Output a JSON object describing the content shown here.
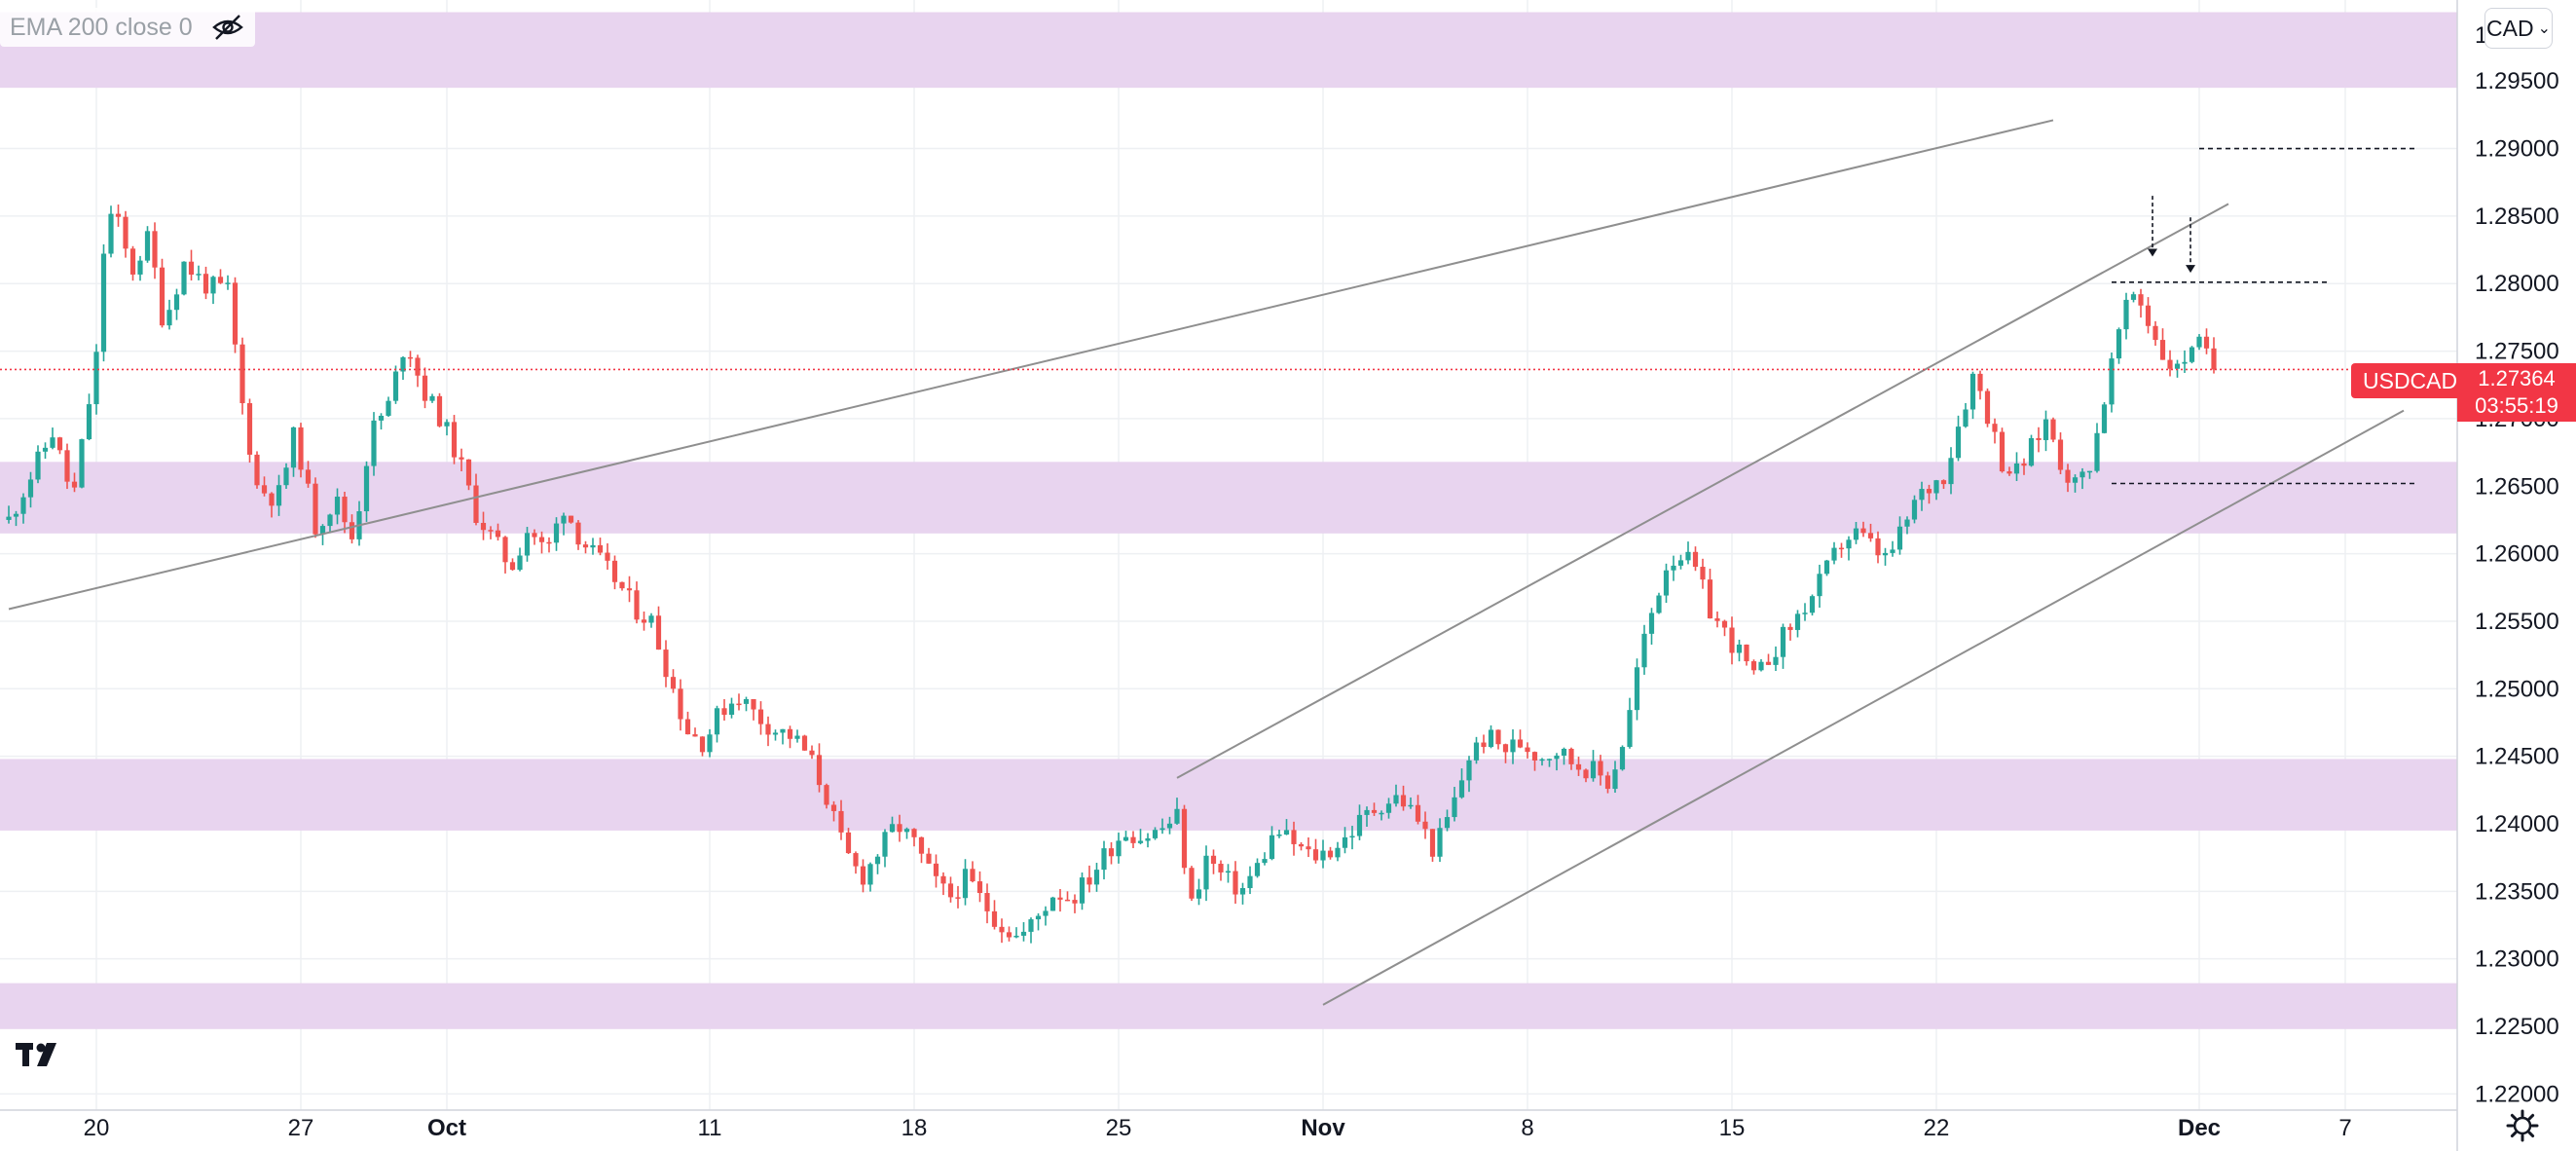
{
  "indicator": {
    "label": "EMA 200 close 0",
    "visibility_icon": "eye-crossed-icon"
  },
  "currency_button": {
    "label": "CAD",
    "icon": "chevron-down-icon"
  },
  "symbol_tag": {
    "label": "USDCAD"
  },
  "price_box": {
    "price": "1.27364",
    "countdown": "03:55:19"
  },
  "logo": {
    "icon": "tradingview-logo-icon"
  },
  "settings": {
    "icon": "gear-icon"
  },
  "colors": {
    "up": "#26a69a",
    "down": "#ef5350",
    "zone": "#e8d4ef",
    "grid": "#eef0f3",
    "axis_text": "#131722",
    "trendline": "#8f8f8f",
    "dashed": "#131722",
    "price_line": "#f23645"
  },
  "chart_data": {
    "type": "candlestick",
    "symbol": "USDCAD",
    "y_ticks": [
      "1.22000",
      "1.22500",
      "1.23000",
      "1.23500",
      "1.24000",
      "1.24500",
      "1.25000",
      "1.25500",
      "1.26000",
      "1.26500",
      "1.27000",
      "1.27500",
      "1.28000",
      "1.28500",
      "1.29000",
      "1.29500"
    ],
    "y_top_partial_label": "1",
    "ylim": [
      1.2188,
      1.301
    ],
    "x_ticks": [
      {
        "label": "20",
        "bold": false
      },
      {
        "label": "27",
        "bold": false
      },
      {
        "label": "Oct",
        "bold": true
      },
      {
        "label": "11",
        "bold": false
      },
      {
        "label": "18",
        "bold": false
      },
      {
        "label": "25",
        "bold": false
      },
      {
        "label": "Nov",
        "bold": true
      },
      {
        "label": "8",
        "bold": false
      },
      {
        "label": "15",
        "bold": false
      },
      {
        "label": "22",
        "bold": false
      },
      {
        "label": "Dec",
        "bold": true
      },
      {
        "label": "7",
        "bold": false
      }
    ],
    "x_tick_days": [
      0,
      7,
      12,
      21,
      28,
      35,
      42,
      49,
      56,
      63,
      72,
      77
    ],
    "current_price": 1.27364,
    "path": [
      [
        -3,
        1.2625
      ],
      [
        -1.5,
        1.269
      ],
      [
        -0.8,
        1.264
      ],
      [
        0,
        1.2745
      ],
      [
        0.3,
        1.284
      ],
      [
        0.6,
        1.2855
      ],
      [
        1.2,
        1.2808
      ],
      [
        1.8,
        1.2835
      ],
      [
        2.3,
        1.277
      ],
      [
        3,
        1.2815
      ],
      [
        3.8,
        1.2798
      ],
      [
        4.5,
        1.2795
      ],
      [
        5,
        1.271
      ],
      [
        5.5,
        1.265
      ],
      [
        6.2,
        1.264
      ],
      [
        6.8,
        1.269
      ],
      [
        7.5,
        1.262
      ],
      [
        8.2,
        1.264
      ],
      [
        8.8,
        1.261
      ],
      [
        9.4,
        1.269
      ],
      [
        10,
        1.271
      ],
      [
        10.6,
        1.276
      ],
      [
        11.2,
        1.272
      ],
      [
        11.8,
        1.27
      ],
      [
        12.4,
        1.267
      ],
      [
        13,
        1.263
      ],
      [
        13.6,
        1.261
      ],
      [
        14.2,
        1.259
      ],
      [
        14.8,
        1.262
      ],
      [
        15.4,
        1.26
      ],
      [
        16,
        1.2635
      ],
      [
        16.6,
        1.261
      ],
      [
        17.2,
        1.2595
      ],
      [
        17.8,
        1.258
      ],
      [
        18.4,
        1.256
      ],
      [
        19,
        1.255
      ],
      [
        19.6,
        1.251
      ],
      [
        20.2,
        1.247
      ],
      [
        20.8,
        1.246
      ],
      [
        21.4,
        1.2485
      ],
      [
        22,
        1.2495
      ],
      [
        22.6,
        1.248
      ],
      [
        23.2,
        1.247
      ],
      [
        23.8,
        1.2465
      ],
      [
        24.4,
        1.245
      ],
      [
        25,
        1.242
      ],
      [
        25.6,
        1.238
      ],
      [
        26.2,
        1.236
      ],
      [
        26.8,
        1.238
      ],
      [
        27.4,
        1.24
      ],
      [
        28,
        1.2385
      ],
      [
        28.6,
        1.236
      ],
      [
        29.2,
        1.2345
      ],
      [
        29.8,
        1.236
      ],
      [
        30.4,
        1.234
      ],
      [
        31,
        1.2325
      ],
      [
        31.6,
        1.2315
      ],
      [
        32.2,
        1.233
      ],
      [
        32.8,
        1.235
      ],
      [
        33.4,
        1.2345
      ],
      [
        34,
        1.236
      ],
      [
        34.6,
        1.238
      ],
      [
        35.2,
        1.2395
      ],
      [
        35.8,
        1.239
      ],
      [
        36.4,
        1.2395
      ],
      [
        37,
        1.2405
      ],
      [
        37.5,
        1.234
      ],
      [
        38,
        1.2375
      ],
      [
        38.6,
        1.236
      ],
      [
        39.2,
        1.235
      ],
      [
        39.8,
        1.237
      ],
      [
        40.4,
        1.2395
      ],
      [
        41,
        1.2385
      ],
      [
        41.6,
        1.2375
      ],
      [
        42.2,
        1.238
      ],
      [
        42.8,
        1.239
      ],
      [
        43.4,
        1.2405
      ],
      [
        44,
        1.2415
      ],
      [
        44.6,
        1.242
      ],
      [
        45.2,
        1.2405
      ],
      [
        45.8,
        1.238
      ],
      [
        46.4,
        1.241
      ],
      [
        47,
        1.245
      ],
      [
        47.6,
        1.2465
      ],
      [
        48.2,
        1.2455
      ],
      [
        48.8,
        1.246
      ],
      [
        49.4,
        1.245
      ],
      [
        50,
        1.2455
      ],
      [
        50.6,
        1.2445
      ],
      [
        51.2,
        1.244
      ],
      [
        51.8,
        1.243
      ],
      [
        52.4,
        1.247
      ],
      [
        52.8,
        1.252
      ],
      [
        53.3,
        1.256
      ],
      [
        53.8,
        1.2595
      ],
      [
        54.3,
        1.26
      ],
      [
        54.8,
        1.2585
      ],
      [
        55.3,
        1.2555
      ],
      [
        55.8,
        1.254
      ],
      [
        56.3,
        1.2525
      ],
      [
        56.8,
        1.2505
      ],
      [
        57.3,
        1.2525
      ],
      [
        57.8,
        1.254
      ],
      [
        58.3,
        1.2555
      ],
      [
        58.8,
        1.257
      ],
      [
        59.3,
        1.259
      ],
      [
        59.8,
        1.261
      ],
      [
        60.3,
        1.2615
      ],
      [
        60.8,
        1.2605
      ],
      [
        61.3,
        1.2595
      ],
      [
        61.8,
        1.2615
      ],
      [
        62.3,
        1.264
      ],
      [
        62.8,
        1.265
      ],
      [
        63.3,
        1.266
      ],
      [
        63.8,
        1.27
      ],
      [
        64.3,
        1.2735
      ],
      [
        64.8,
        1.27
      ],
      [
        65.3,
        1.2665
      ],
      [
        65.8,
        1.266
      ],
      [
        66.3,
        1.268
      ],
      [
        66.8,
        1.27
      ],
      [
        67.3,
        1.2665
      ],
      [
        67.8,
        1.265
      ],
      [
        68.3,
        1.267
      ],
      [
        68.8,
        1.272
      ],
      [
        69.3,
        1.277
      ],
      [
        69.8,
        1.2795
      ],
      [
        70.3,
        1.277
      ],
      [
        70.8,
        1.2745
      ],
      [
        71.3,
        1.2735
      ],
      [
        71.8,
        1.276
      ],
      [
        72.3,
        1.2745
      ],
      [
        72.7,
        1.27364
      ]
    ],
    "drawings": {
      "zones": [
        [
          1.2945,
          1.3001
        ],
        [
          1.2615,
          1.2668
        ],
        [
          1.2395,
          1.2448
        ],
        [
          1.2248,
          1.2282
        ]
      ],
      "trendlines": [
        [
          [
            -3,
            1.2559
          ],
          [
            67,
            1.2921
          ]
        ],
        [
          [
            37,
            1.2434
          ],
          [
            73,
            1.2859
          ]
        ],
        [
          [
            42,
            1.2266
          ],
          [
            79,
            1.2706
          ]
        ]
      ],
      "dashed_levels": [
        [
          [
            69,
            1.2652
          ],
          [
            79.5,
            1.2652
          ]
        ],
        [
          [
            72,
            1.29
          ],
          [
            79.5,
            1.29
          ]
        ],
        [
          [
            69,
            1.2801
          ],
          [
            76.5,
            1.2801
          ]
        ]
      ],
      "arrows": [
        [
          70.4,
          1.2865,
          1.282
        ],
        [
          71.7,
          1.2849,
          1.2808
        ]
      ]
    }
  }
}
